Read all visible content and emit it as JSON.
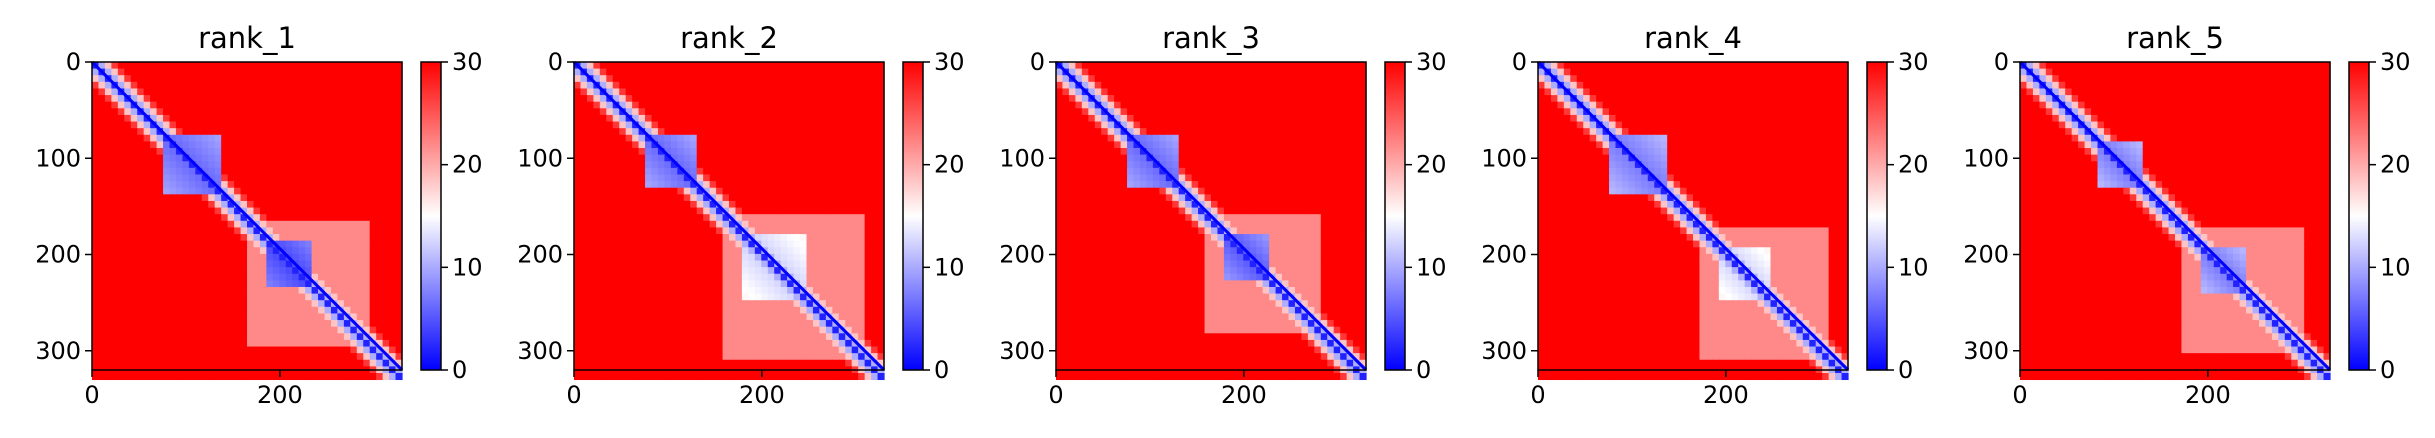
{
  "chart_data": [
    {
      "type": "heatmap",
      "title": "rank_1",
      "xlim": [
        0,
        330
      ],
      "ylim": [
        320,
        0
      ],
      "x_ticks": [
        0,
        200
      ],
      "y_ticks": [
        0,
        100,
        200,
        300
      ],
      "colorbar": {
        "range": [
          0,
          30
        ],
        "ticks": [
          0,
          10,
          20,
          30
        ],
        "colormap": [
          "#0000ff",
          "#ffffff",
          "#ff0000"
        ]
      },
      "blocks": [
        {
          "start": 75,
          "end": 140,
          "value": 6
        },
        {
          "start": 185,
          "end": 235,
          "value": 4
        }
      ]
    },
    {
      "type": "heatmap",
      "title": "rank_2",
      "xlim": [
        0,
        330
      ],
      "ylim": [
        320,
        0
      ],
      "x_ticks": [
        0,
        200
      ],
      "y_ticks": [
        0,
        100,
        200,
        300
      ],
      "colorbar": {
        "range": [
          0,
          30
        ],
        "ticks": [
          0,
          10,
          20,
          30
        ],
        "colormap": [
          "#0000ff",
          "#ffffff",
          "#ff0000"
        ]
      },
      "blocks": [
        {
          "start": 75,
          "end": 130,
          "value": 6
        },
        {
          "start": 180,
          "end": 250,
          "value": 12
        }
      ]
    },
    {
      "type": "heatmap",
      "title": "rank_3",
      "xlim": [
        0,
        330
      ],
      "ylim": [
        320,
        0
      ],
      "x_ticks": [
        0,
        200
      ],
      "y_ticks": [
        0,
        100,
        200,
        300
      ],
      "colorbar": {
        "range": [
          0,
          30
        ],
        "ticks": [
          0,
          10,
          20,
          30
        ],
        "colormap": [
          "#0000ff",
          "#ffffff",
          "#ff0000"
        ]
      },
      "blocks": [
        {
          "start": 75,
          "end": 130,
          "value": 6
        },
        {
          "start": 180,
          "end": 225,
          "value": 5
        }
      ]
    },
    {
      "type": "heatmap",
      "title": "rank_4",
      "xlim": [
        0,
        330
      ],
      "ylim": [
        320,
        0
      ],
      "x_ticks": [
        0,
        200
      ],
      "y_ticks": [
        0,
        100,
        200,
        300
      ],
      "colorbar": {
        "range": [
          0,
          30
        ],
        "ticks": [
          0,
          10,
          20,
          30
        ],
        "colormap": [
          "#0000ff",
          "#ffffff",
          "#ff0000"
        ]
      },
      "blocks": [
        {
          "start": 75,
          "end": 135,
          "value": 7
        },
        {
          "start": 195,
          "end": 250,
          "value": 12
        }
      ]
    },
    {
      "type": "heatmap",
      "title": "rank_5",
      "xlim": [
        0,
        330
      ],
      "ylim": [
        320,
        0
      ],
      "x_ticks": [
        0,
        200
      ],
      "y_ticks": [
        0,
        100,
        200,
        300
      ],
      "colorbar": {
        "range": [
          0,
          30
        ],
        "ticks": [
          0,
          10,
          20,
          30
        ],
        "colormap": [
          "#0000ff",
          "#ffffff",
          "#ff0000"
        ]
      },
      "blocks": [
        {
          "start": 85,
          "end": 130,
          "value": 7
        },
        {
          "start": 195,
          "end": 240,
          "value": 7
        }
      ]
    }
  ]
}
